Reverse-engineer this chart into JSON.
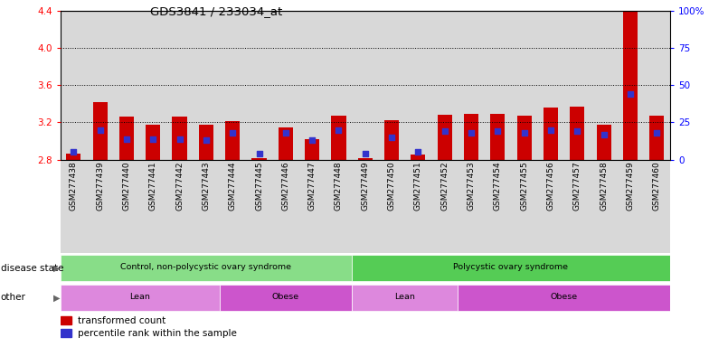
{
  "title": "GDS3841 / 233034_at",
  "samples": [
    "GSM277438",
    "GSM277439",
    "GSM277440",
    "GSM277441",
    "GSM277442",
    "GSM277443",
    "GSM277444",
    "GSM277445",
    "GSM277446",
    "GSM277447",
    "GSM277448",
    "GSM277449",
    "GSM277450",
    "GSM277451",
    "GSM277452",
    "GSM277453",
    "GSM277454",
    "GSM277455",
    "GSM277456",
    "GSM277457",
    "GSM277458",
    "GSM277459",
    "GSM277460"
  ],
  "transformed_count": [
    2.86,
    3.42,
    3.26,
    3.17,
    3.26,
    3.17,
    3.21,
    2.82,
    3.15,
    3.02,
    3.27,
    2.82,
    3.22,
    2.85,
    3.28,
    3.29,
    3.29,
    3.27,
    3.36,
    3.37,
    3.17,
    4.48,
    3.27
  ],
  "percentile_rank": [
    5,
    20,
    14,
    14,
    14,
    13,
    18,
    4,
    18,
    13,
    20,
    4,
    15,
    5,
    19,
    18,
    19,
    18,
    20,
    19,
    17,
    44,
    18
  ],
  "ymin": 2.8,
  "ymax": 4.4,
  "yticks_left": [
    2.8,
    3.2,
    3.6,
    4.0,
    4.4
  ],
  "yticks_right": [
    0,
    25,
    50,
    75,
    100
  ],
  "bar_color": "#cc0000",
  "blue_color": "#3333cc",
  "disease_state_groups": [
    {
      "label": "Control, non-polycystic ovary syndrome",
      "start": 0,
      "end": 10,
      "color": "#88dd88"
    },
    {
      "label": "Polycystic ovary syndrome",
      "start": 11,
      "end": 22,
      "color": "#55cc55"
    }
  ],
  "other_groups": [
    {
      "label": "Lean",
      "start": 0,
      "end": 5,
      "color": "#dd88dd"
    },
    {
      "label": "Obese",
      "start": 6,
      "end": 10,
      "color": "#cc55cc"
    },
    {
      "label": "Lean",
      "start": 11,
      "end": 14,
      "color": "#dd88dd"
    },
    {
      "label": "Obese",
      "start": 15,
      "end": 22,
      "color": "#cc55cc"
    }
  ],
  "bar_width": 0.55,
  "col_bg_color": "#d8d8d8"
}
